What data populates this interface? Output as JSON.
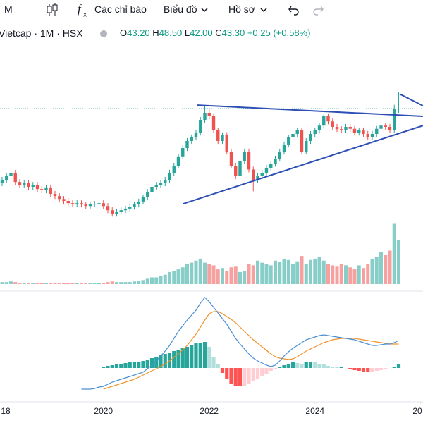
{
  "toolbar": {
    "interval": "M",
    "indicators": "Các chỉ báo",
    "chart": "Biểu đồ",
    "profile": "Hồ sơ"
  },
  "legend": {
    "symbol": "Vietcap · 1M · HSX",
    "o_label": "O",
    "o": "43.20",
    "h_label": "H",
    "h": "48.50",
    "l_label": "L",
    "l": "42.00",
    "c_label": "C",
    "c": "43.30",
    "change": "+0.25 (+0.58%)"
  },
  "chart_data": {
    "type": "candlestick",
    "up_color": "#26a69a",
    "down_color": "#ef5350",
    "open": [
      20.0,
      21.1,
      22.2,
      23.3,
      20.4,
      19.5,
      20.0,
      18.9,
      19.5,
      18.2,
      17.8,
      18.7,
      16.7,
      16.0,
      15.1,
      14.5,
      13.8,
      13.4,
      13.8,
      13.4,
      12.9,
      13.4,
      13.6,
      13.8,
      12.9,
      11.6,
      10.5,
      11.2,
      11.6,
      12.1,
      12.7,
      13.4,
      14.3,
      15.6,
      17.3,
      18.9,
      19.5,
      20.0,
      21.1,
      23.3,
      25.5,
      28.4,
      31.0,
      33.2,
      34.3,
      35.8,
      39.8,
      42.0,
      40.9,
      36.5,
      33.2,
      35.0,
      29.9,
      25.5,
      22.2,
      27.0,
      29.9,
      24.3,
      21.1,
      22.2,
      23.3,
      24.8,
      26.1,
      27.7,
      29.9,
      32.1,
      34.3,
      35.4,
      36.5,
      29.9,
      33.2,
      35.4,
      36.5,
      38.0,
      40.9,
      39.3,
      37.6,
      36.9,
      36.5,
      37.6,
      37.0,
      35.8,
      36.5,
      35.4,
      34.3,
      35.4,
      37.0,
      38.0,
      37.6,
      36.5,
      43.2
    ],
    "high": [
      22.0,
      23.1,
      25.5,
      24.2,
      21.3,
      20.9,
      20.9,
      20.4,
      20.4,
      19.1,
      19.6,
      19.6,
      17.6,
      16.9,
      16.0,
      15.4,
      14.7,
      14.7,
      14.7,
      14.3,
      14.3,
      14.5,
      14.7,
      14.7,
      13.8,
      12.5,
      12.1,
      12.5,
      13.0,
      13.6,
      14.3,
      15.2,
      16.5,
      18.2,
      19.8,
      20.4,
      20.9,
      22.0,
      24.2,
      26.4,
      29.3,
      31.9,
      34.1,
      35.2,
      36.7,
      40.7,
      44.2,
      43.5,
      41.8,
      37.4,
      35.9,
      35.9,
      30.8,
      26.4,
      27.9,
      30.8,
      30.8,
      25.2,
      23.1,
      24.2,
      25.7,
      27.0,
      28.6,
      30.8,
      33.0,
      35.2,
      36.3,
      37.4,
      37.4,
      34.1,
      36.3,
      37.4,
      38.9,
      41.8,
      41.8,
      40.2,
      38.5,
      37.8,
      38.5,
      38.5,
      37.9,
      37.4,
      37.4,
      36.3,
      36.3,
      37.9,
      38.9,
      38.9,
      38.5,
      44.5,
      48.5
    ],
    "low": [
      19.1,
      20.2,
      21.3,
      19.5,
      18.6,
      18.6,
      18.0,
      18.0,
      17.3,
      16.9,
      16.9,
      15.8,
      15.1,
      14.2,
      13.6,
      12.9,
      12.5,
      12.5,
      12.5,
      12.0,
      12.0,
      12.5,
      12.7,
      12.0,
      10.7,
      9.6,
      9.6,
      10.3,
      10.7,
      11.2,
      11.8,
      12.5,
      13.4,
      14.7,
      16.4,
      18.0,
      18.6,
      19.1,
      20.2,
      22.4,
      24.6,
      27.5,
      30.1,
      32.3,
      33.4,
      34.9,
      38.9,
      40.0,
      35.6,
      32.3,
      32.3,
      29.0,
      24.6,
      21.3,
      21.3,
      26.1,
      23.4,
      17.5,
      20.2,
      21.3,
      22.4,
      23.9,
      25.2,
      26.8,
      29.0,
      31.2,
      33.4,
      34.5,
      29.0,
      29.0,
      32.3,
      34.5,
      35.6,
      37.1,
      38.4,
      36.7,
      36.0,
      35.6,
      35.6,
      36.1,
      34.9,
      34.9,
      34.5,
      33.4,
      33.4,
      34.5,
      36.1,
      36.7,
      35.6,
      35.6,
      42.0
    ],
    "close": [
      21.1,
      22.2,
      23.3,
      20.4,
      19.5,
      20.0,
      18.9,
      19.5,
      18.2,
      17.8,
      18.7,
      16.7,
      16.0,
      15.1,
      14.5,
      13.8,
      13.4,
      13.8,
      13.4,
      12.9,
      13.4,
      13.6,
      13.8,
      12.9,
      11.6,
      10.5,
      11.2,
      11.6,
      12.1,
      12.7,
      13.4,
      14.3,
      15.6,
      17.3,
      18.9,
      19.5,
      20.0,
      21.1,
      23.3,
      25.5,
      28.4,
      31.0,
      33.2,
      34.3,
      35.8,
      39.8,
      42.0,
      40.9,
      36.5,
      33.2,
      35.0,
      29.9,
      25.5,
      22.2,
      27.0,
      29.9,
      24.3,
      21.1,
      22.2,
      23.3,
      24.8,
      26.1,
      27.7,
      29.9,
      32.1,
      34.3,
      35.4,
      36.5,
      29.9,
      33.2,
      35.4,
      36.5,
      38.0,
      40.9,
      39.3,
      37.6,
      36.9,
      36.5,
      37.6,
      37.0,
      35.8,
      36.5,
      35.4,
      34.3,
      35.4,
      37.0,
      38.0,
      37.6,
      36.5,
      43.1,
      43.3
    ],
    "ylim": [
      6.8,
      57.4
    ],
    "volume": [
      3,
      3,
      4,
      3,
      2,
      2,
      2,
      2,
      2,
      2,
      2,
      2,
      2,
      2,
      2,
      2,
      2,
      2,
      2,
      2,
      2,
      2,
      2,
      2,
      3,
      4,
      3,
      3,
      3,
      3,
      4,
      5,
      6,
      8,
      10,
      10,
      12,
      14,
      18,
      20,
      22,
      25,
      30,
      32,
      35,
      38,
      32,
      30,
      28,
      22,
      24,
      20,
      25,
      26,
      18,
      20,
      30,
      28,
      35,
      32,
      30,
      28,
      35,
      33,
      38,
      36,
      30,
      34,
      42,
      30,
      36,
      38,
      40,
      35,
      30,
      28,
      26,
      30,
      28,
      25,
      22,
      28,
      24,
      30,
      38,
      40,
      48,
      44,
      50,
      90,
      66
    ],
    "volume_lim": [
      0,
      100
    ],
    "macd_color": "#4a8fd4",
    "signal_color": "#f0932b",
    "macd": [
      null,
      null,
      null,
      null,
      null,
      null,
      null,
      null,
      null,
      null,
      null,
      null,
      null,
      null,
      null,
      null,
      null,
      null,
      -3.0,
      -3.0,
      -3.0,
      -2.9,
      -2.7,
      -2.6,
      -2.3,
      -2.0,
      -1.8,
      -1.6,
      -1.4,
      -1.2,
      -1.0,
      -0.8,
      -0.6,
      -0.1,
      0.4,
      1.0,
      1.7,
      2.4,
      3.2,
      4.2,
      5.2,
      6.0,
      6.8,
      7.5,
      8.2,
      9.2,
      10.0,
      9.4,
      8.6,
      7.8,
      7.0,
      6.2,
      5.2,
      4.2,
      3.4,
      2.7,
      2.0,
      1.4,
      1.0,
      0.7,
      0.4,
      0.2,
      0.4,
      1.0,
      1.7,
      2.3,
      2.8,
      3.2,
      3.6,
      4.0,
      4.2,
      4.4,
      4.6,
      4.7,
      4.6,
      4.5,
      4.4,
      4.3,
      4.2,
      4.1,
      4.0,
      3.8,
      3.6,
      3.4,
      3.2,
      3.2,
      3.3,
      3.4,
      3.4,
      3.6,
      3.9
    ],
    "signal": [
      null,
      null,
      null,
      null,
      null,
      null,
      null,
      null,
      null,
      null,
      null,
      null,
      null,
      null,
      null,
      null,
      null,
      null,
      null,
      null,
      null,
      null,
      null,
      -3.0,
      -2.8,
      -2.6,
      -2.4,
      -2.2,
      -2.0,
      -1.8,
      -1.6,
      -1.3,
      -1.0,
      -0.7,
      -0.4,
      -0.1,
      0.2,
      0.6,
      1.0,
      1.5,
      2.0,
      2.6,
      3.2,
      4.0,
      4.8,
      5.8,
      6.8,
      7.7,
      8.0,
      8.0,
      7.7,
      7.3,
      6.9,
      6.4,
      5.8,
      5.2,
      4.6,
      4.0,
      3.5,
      3.0,
      2.5,
      2.0,
      1.6,
      1.4,
      1.3,
      1.2,
      1.3,
      1.6,
      2.0,
      2.4,
      2.7,
      3.0,
      3.3,
      3.6,
      3.8,
      4.0,
      4.1,
      4.2,
      4.2,
      4.2,
      4.2,
      4.1,
      4.0,
      3.9,
      3.8,
      3.7,
      3.6,
      3.5,
      3.4,
      3.4,
      3.4
    ],
    "histogram": [
      null,
      null,
      null,
      null,
      null,
      null,
      null,
      null,
      null,
      null,
      null,
      null,
      null,
      null,
      null,
      null,
      null,
      null,
      null,
      null,
      null,
      null,
      null,
      0.1,
      0.3,
      0.4,
      0.5,
      0.6,
      0.7,
      0.8,
      0.8,
      0.9,
      1.0,
      1.2,
      1.4,
      1.6,
      1.9,
      2.0,
      2.2,
      2.4,
      2.6,
      2.8,
      3.0,
      3.3,
      3.5,
      3.6,
      3.7,
      3.0,
      1.6,
      0.5,
      -0.7,
      -1.6,
      -2.2,
      -2.5,
      -2.6,
      -2.5,
      -2.2,
      -1.9,
      -1.5,
      -1.2,
      -0.8,
      -0.4,
      -0.2,
      0.2,
      0.4,
      0.6,
      0.8,
      0.7,
      0.6,
      0.8,
      0.9,
      0.8,
      0.6,
      0.5,
      0.3,
      0.2,
      0.1,
      0.1,
      0.0,
      -0.1,
      -0.3,
      -0.4,
      -0.5,
      -0.6,
      -0.6,
      -0.4,
      -0.3,
      -0.2,
      0.0,
      0.2,
      0.5
    ],
    "macd_lim": [
      -5.8,
      10.7
    ],
    "trendline_color": "#2d4fb5",
    "trendlines": [
      [
        [
          44.3,
          44.4
        ],
        [
          95.5,
          40.9
        ]
      ],
      [
        [
          41.1,
          13.6
        ],
        [
          95.5,
          38.0
        ]
      ],
      [
        [
          90.2,
          47.9
        ],
        [
          95.5,
          44.2
        ]
      ]
    ],
    "xticks": [
      {
        "value": -1,
        "label": "18"
      },
      {
        "value": 23,
        "label": "2020"
      },
      {
        "value": 47,
        "label": "2022"
      },
      {
        "value": 71,
        "label": "2024"
      },
      {
        "value": 95,
        "label": "20"
      }
    ]
  }
}
